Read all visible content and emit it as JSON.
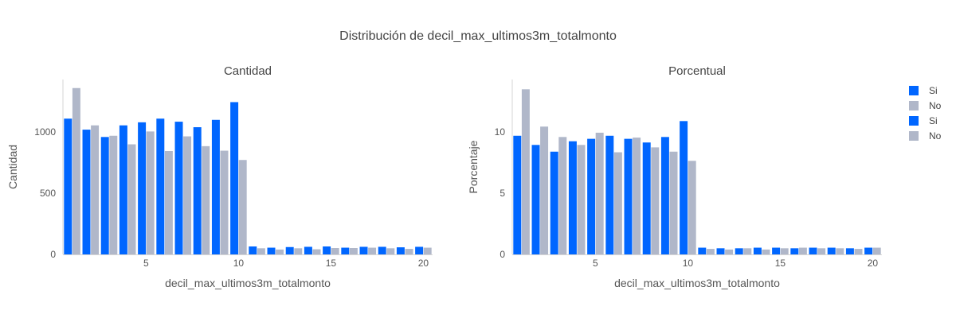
{
  "chart_data": {
    "type": "bar",
    "title": "Distribución de decil_max_ultimos3m_totalmonto",
    "colors": {
      "si": "#0066ff",
      "no": "#b0b7c9"
    },
    "legend": [
      "Si",
      "No",
      "Si",
      "No"
    ],
    "subplots": [
      {
        "id": "cantidad",
        "title": "Cantidad",
        "xlabel": "decil_max_ultimos3m_totalmonto",
        "ylabel": "Cantidad",
        "ylim": [
          0,
          1430
        ],
        "xlim": [
          0.5,
          20.5
        ],
        "xticks": [
          5,
          10,
          15,
          20
        ],
        "yticks": [
          0,
          500,
          1000
        ],
        "x": [
          1,
          2,
          3,
          4,
          5,
          6,
          7,
          8,
          9,
          10,
          11,
          12,
          13,
          14,
          15,
          16,
          17,
          18,
          19,
          20
        ],
        "series": [
          {
            "name": "Si",
            "values": [
              1110,
              1020,
              960,
              1055,
              1080,
              1110,
              1085,
              1040,
              1100,
              1245,
              65,
              55,
              60,
              62,
              65,
              55,
              62,
              62,
              58,
              62
            ]
          },
          {
            "name": "No",
            "values": [
              1360,
              1055,
              970,
              900,
              1005,
              845,
              965,
              885,
              848,
              772,
              50,
              40,
              50,
              42,
              52,
              52,
              55,
              50,
              45,
              55
            ]
          }
        ]
      },
      {
        "id": "porcentual",
        "title": "Porcentual",
        "xlabel": "decil_max_ultimos3m_totalmonto",
        "ylabel": "Porcentaje",
        "ylim": [
          0,
          14.3
        ],
        "xlim": [
          0.5,
          20.5
        ],
        "xticks": [
          5,
          10,
          15,
          20
        ],
        "yticks": [
          0,
          5,
          10
        ],
        "x": [
          1,
          2,
          3,
          4,
          5,
          6,
          7,
          8,
          9,
          10,
          11,
          12,
          13,
          14,
          15,
          16,
          17,
          18,
          19,
          20
        ],
        "series": [
          {
            "name": "Si",
            "values": [
              9.7,
              8.95,
              8.4,
              9.25,
              9.45,
              9.7,
              9.45,
              9.15,
              9.6,
              10.9,
              0.55,
              0.5,
              0.5,
              0.55,
              0.55,
              0.5,
              0.55,
              0.55,
              0.5,
              0.55
            ]
          },
          {
            "name": "No",
            "values": [
              13.5,
              10.45,
              9.6,
              8.95,
              9.95,
              8.35,
              9.55,
              8.75,
              8.4,
              7.65,
              0.45,
              0.4,
              0.5,
              0.4,
              0.5,
              0.55,
              0.5,
              0.5,
              0.45,
              0.55
            ]
          }
        ]
      }
    ]
  }
}
